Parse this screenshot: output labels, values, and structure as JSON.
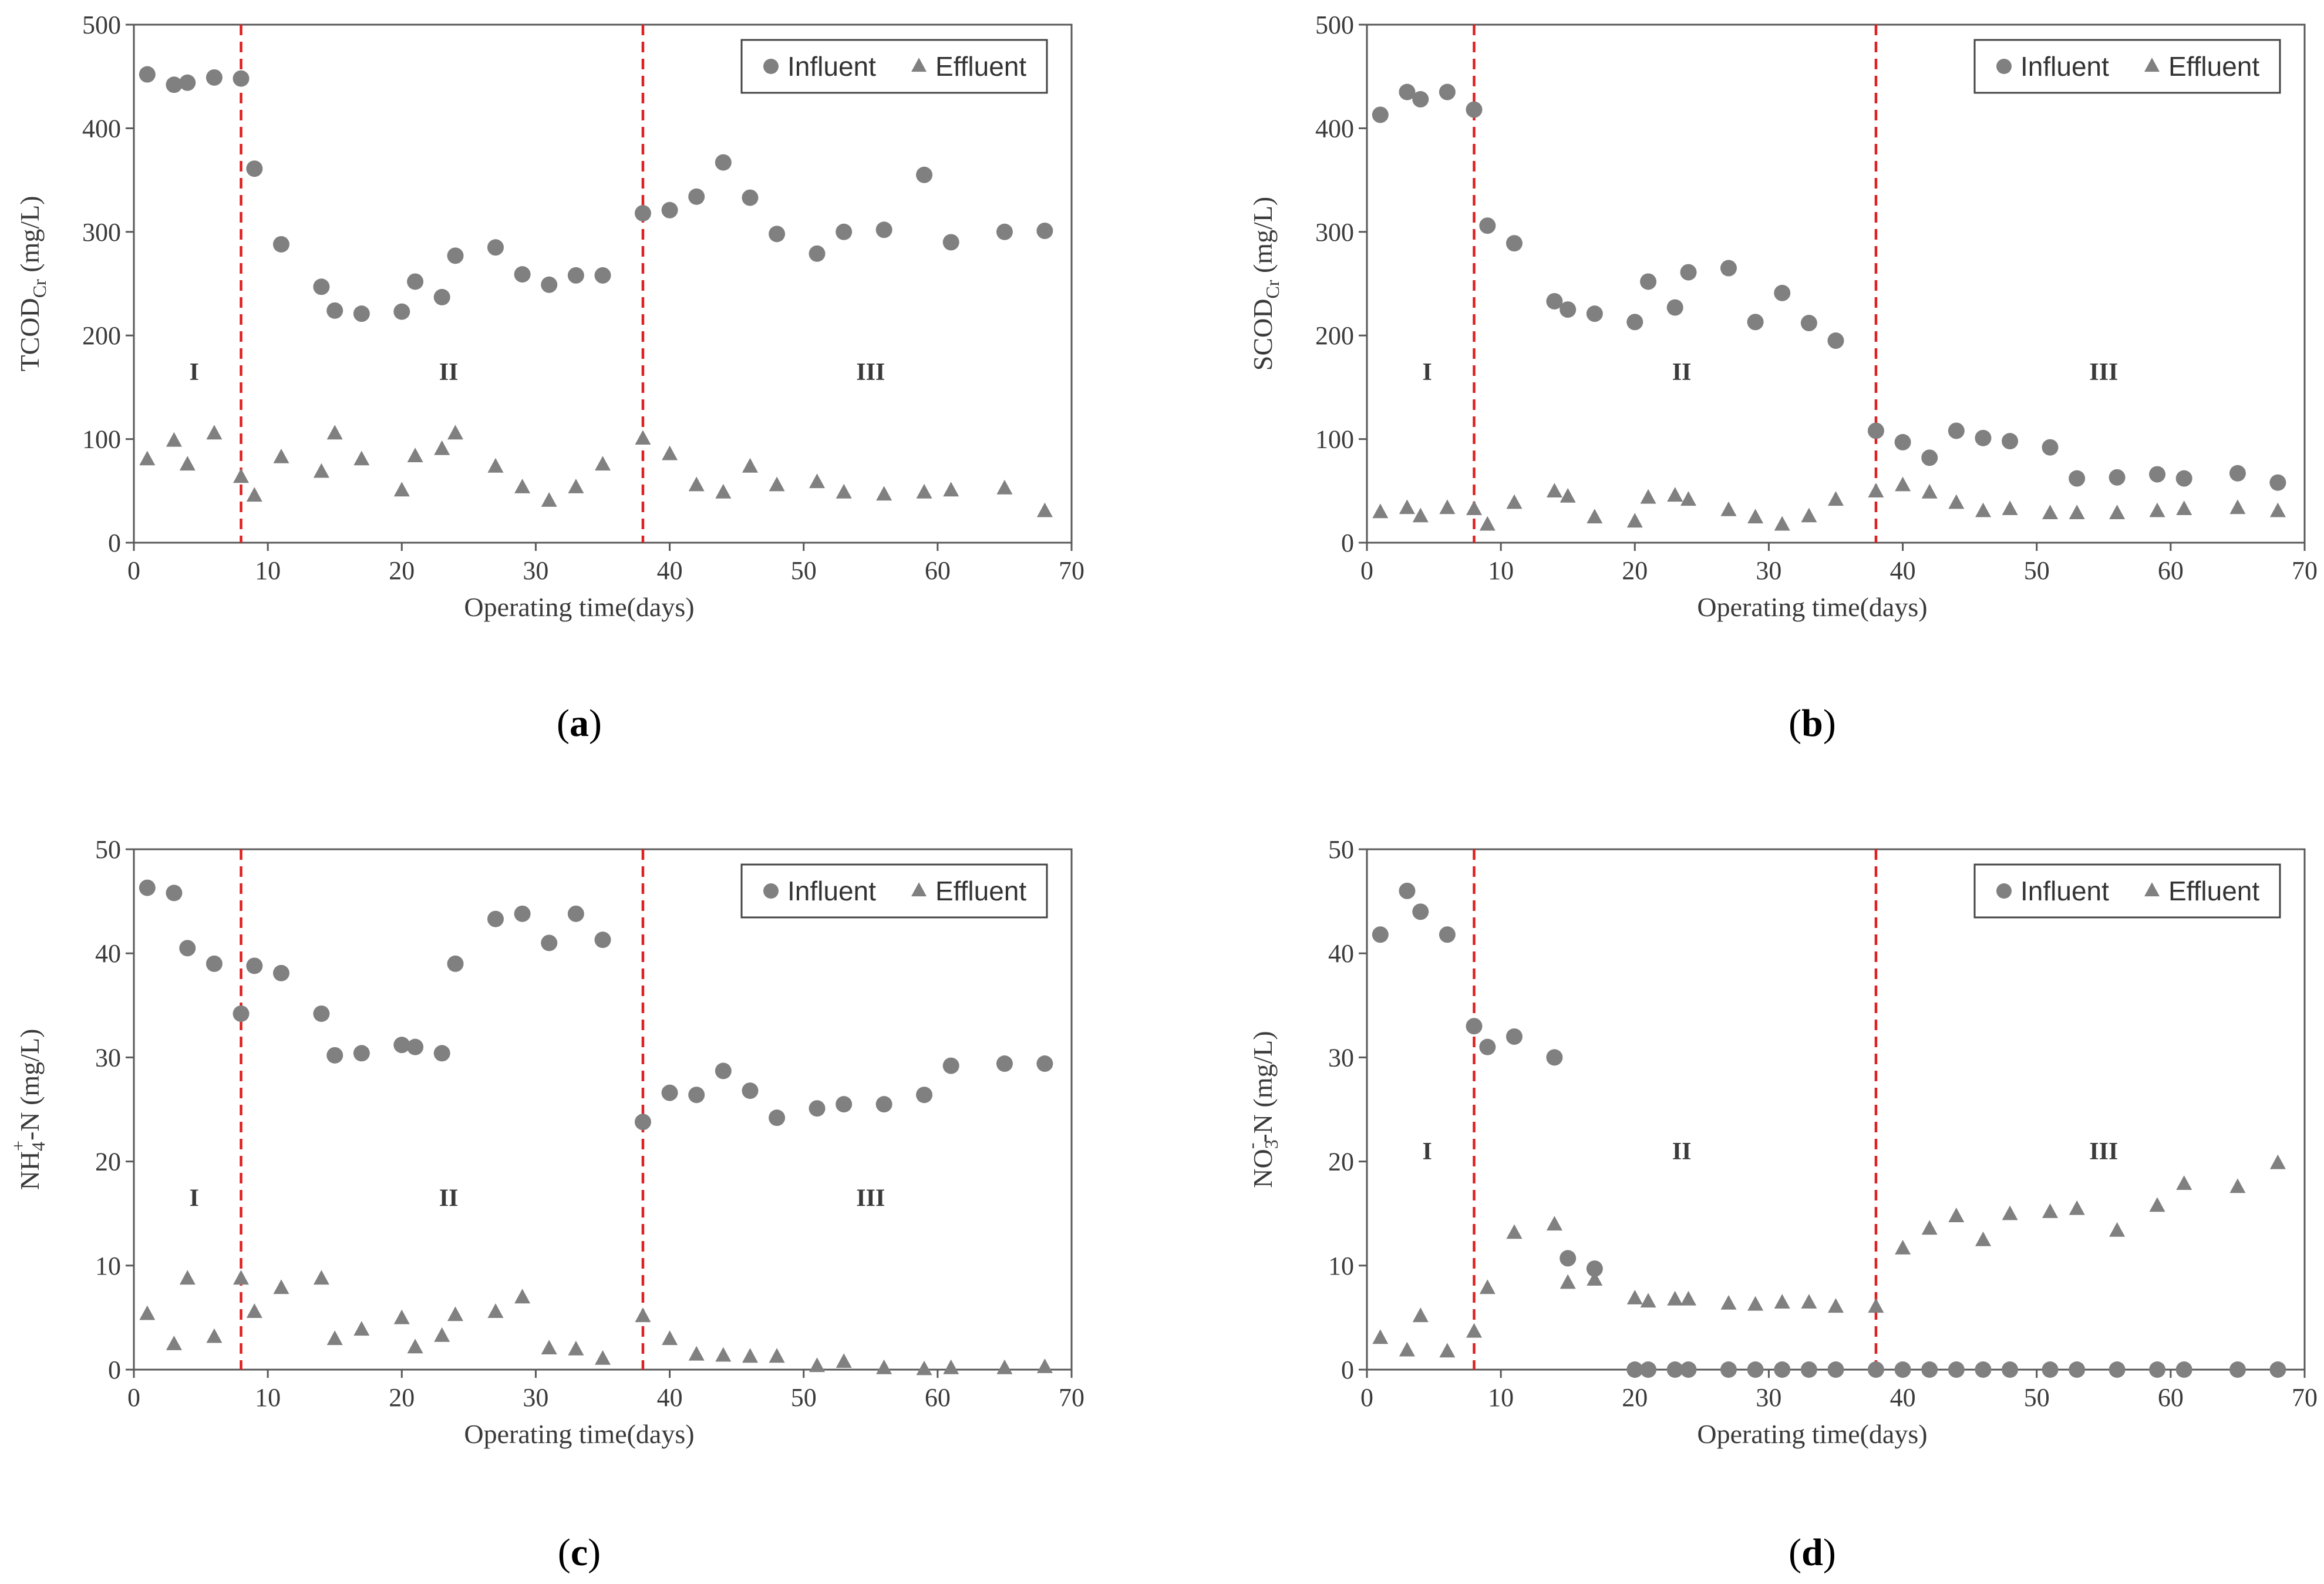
{
  "colors": {
    "marker": "#808080",
    "phase_line": "#e02020",
    "axis": "#595959"
  },
  "chart_data": [
    {
      "panel_label": "a",
      "type": "scatter",
      "ylabel": {
        "main": "TCOD",
        "sub": "Cr",
        "unit": " (mg/L)"
      },
      "xlabel": "Operating time(days)",
      "xlim": [
        0,
        70
      ],
      "ylim": [
        0,
        500
      ],
      "xticks": [
        0,
        10,
        20,
        30,
        40,
        50,
        60,
        70
      ],
      "yticks": [
        0,
        100,
        200,
        300,
        400,
        500
      ],
      "phase_boundaries": [
        8,
        38
      ],
      "phases": [
        {
          "label": "I",
          "x": 4.5,
          "y": 165
        },
        {
          "label": "II",
          "x": 23.5,
          "y": 165
        },
        {
          "label": "III",
          "x": 55,
          "y": 165
        }
      ],
      "legend": {
        "influent": "Influent",
        "effluent": "Effluent",
        "position": "top-right"
      },
      "series": [
        {
          "name": "Influent",
          "marker": "circle",
          "x": [
            1,
            3,
            4,
            6,
            8,
            9,
            11,
            14,
            15,
            17,
            20,
            21,
            23,
            24,
            27,
            29,
            31,
            33,
            35,
            38,
            40,
            42,
            44,
            46,
            48,
            51,
            53,
            56,
            59,
            61,
            65,
            68
          ],
          "values": [
            452,
            442,
            444,
            449,
            448,
            361,
            288,
            247,
            224,
            221,
            223,
            252,
            237,
            277,
            285,
            259,
            249,
            258,
            258,
            318,
            321,
            334,
            367,
            333,
            298,
            279,
            300,
            302,
            355,
            290,
            300,
            301
          ]
        },
        {
          "name": "Effluent",
          "marker": "triangle",
          "x": [
            1,
            3,
            4,
            6,
            8,
            9,
            11,
            14,
            15,
            17,
            20,
            21,
            23,
            24,
            27,
            29,
            31,
            33,
            35,
            38,
            40,
            42,
            44,
            46,
            48,
            51,
            53,
            56,
            59,
            61,
            65,
            68
          ],
          "values": [
            80,
            98,
            75,
            105,
            63,
            45,
            82,
            68,
            105,
            80,
            50,
            83,
            90,
            105,
            73,
            53,
            40,
            53,
            75,
            100,
            85,
            55,
            48,
            73,
            55,
            58,
            48,
            46,
            48,
            50,
            52,
            30
          ]
        }
      ]
    },
    {
      "panel_label": "b",
      "type": "scatter",
      "ylabel": {
        "main": "SCOD",
        "sub": "Cr",
        "unit": " (mg/L)"
      },
      "xlabel": "Operating time(days)",
      "xlim": [
        0,
        70
      ],
      "ylim": [
        0,
        500
      ],
      "xticks": [
        0,
        10,
        20,
        30,
        40,
        50,
        60,
        70
      ],
      "yticks": [
        0,
        100,
        200,
        300,
        400,
        500
      ],
      "phase_boundaries": [
        8,
        38
      ],
      "phases": [
        {
          "label": "I",
          "x": 4.5,
          "y": 165
        },
        {
          "label": "II",
          "x": 23.5,
          "y": 165
        },
        {
          "label": "III",
          "x": 55,
          "y": 165
        }
      ],
      "legend": {
        "influent": "Influent",
        "effluent": "Effluent",
        "position": "top-right"
      },
      "series": [
        {
          "name": "Influent",
          "marker": "circle",
          "x": [
            1,
            3,
            4,
            6,
            8,
            9,
            11,
            14,
            15,
            17,
            20,
            21,
            23,
            24,
            27,
            29,
            31,
            33,
            35,
            38,
            40,
            42,
            44,
            46,
            48,
            51,
            53,
            56,
            59,
            61,
            65,
            68
          ],
          "values": [
            413,
            435,
            428,
            435,
            418,
            306,
            289,
            233,
            225,
            221,
            213,
            252,
            227,
            261,
            265,
            213,
            241,
            212,
            195,
            108,
            97,
            82,
            108,
            101,
            98,
            92,
            62,
            63,
            66,
            62,
            67,
            58
          ]
        },
        {
          "name": "Effluent",
          "marker": "triangle",
          "x": [
            1,
            3,
            4,
            6,
            8,
            9,
            11,
            14,
            15,
            17,
            20,
            21,
            23,
            24,
            27,
            29,
            31,
            33,
            35,
            38,
            40,
            42,
            44,
            46,
            48,
            51,
            53,
            56,
            59,
            61,
            65,
            68
          ],
          "values": [
            29,
            33,
            25,
            33,
            32,
            17,
            38,
            49,
            44,
            24,
            20,
            43,
            45,
            41,
            31,
            24,
            17,
            25,
            41,
            49,
            55,
            48,
            38,
            30,
            32,
            28,
            28,
            28,
            30,
            32,
            33,
            30
          ]
        }
      ]
    },
    {
      "panel_label": "c",
      "type": "scatter",
      "ylabel": {
        "main": "NH",
        "sub": "4",
        "sup": "+",
        "unit": "-N (mg/L)"
      },
      "xlabel": "Operating time(days)",
      "xlim": [
        0,
        70
      ],
      "ylim": [
        0,
        50
      ],
      "xticks": [
        0,
        10,
        20,
        30,
        40,
        50,
        60,
        70
      ],
      "yticks": [
        0,
        10,
        20,
        30,
        40,
        50
      ],
      "phase_boundaries": [
        8,
        38
      ],
      "phases": [
        {
          "label": "I",
          "x": 4.5,
          "y": 16.5
        },
        {
          "label": "II",
          "x": 23.5,
          "y": 16.5
        },
        {
          "label": "III",
          "x": 55,
          "y": 16.5
        }
      ],
      "legend": {
        "influent": "Influent",
        "effluent": "Effluent",
        "position": "top-right"
      },
      "series": [
        {
          "name": "Influent",
          "marker": "circle",
          "x": [
            1,
            3,
            4,
            6,
            8,
            9,
            11,
            14,
            15,
            17,
            20,
            21,
            23,
            24,
            27,
            29,
            31,
            33,
            35,
            38,
            40,
            42,
            44,
            46,
            48,
            51,
            53,
            56,
            59,
            61,
            65,
            68
          ],
          "values": [
            46.3,
            45.8,
            40.5,
            39.0,
            34.2,
            38.8,
            38.1,
            34.2,
            30.2,
            30.4,
            31.2,
            31.0,
            30.4,
            39.0,
            43.3,
            43.8,
            41.0,
            43.8,
            41.3,
            23.8,
            26.6,
            26.4,
            28.7,
            26.8,
            24.2,
            25.1,
            25.5,
            25.5,
            26.4,
            29.2,
            29.4,
            29.4
          ]
        },
        {
          "name": "Effluent",
          "marker": "triangle",
          "x": [
            1,
            3,
            4,
            6,
            8,
            9,
            11,
            14,
            15,
            17,
            20,
            21,
            23,
            24,
            27,
            29,
            31,
            33,
            35,
            38,
            40,
            42,
            44,
            46,
            48,
            51,
            53,
            56,
            59,
            61,
            65,
            68
          ],
          "values": [
            5.3,
            2.4,
            8.7,
            3.1,
            8.7,
            5.5,
            7.8,
            8.7,
            2.9,
            3.8,
            4.9,
            2.1,
            3.2,
            5.2,
            5.5,
            6.9,
            2.0,
            1.9,
            1.0,
            5.1,
            2.9,
            1.4,
            1.3,
            1.2,
            1.2,
            0.3,
            0.7,
            0.1,
            0.0,
            0.1,
            0.1,
            0.2
          ]
        }
      ]
    },
    {
      "panel_label": "d",
      "type": "scatter",
      "ylabel": {
        "main": "NO",
        "sub": "3",
        "sup": "-",
        "unit": "-N (mg/L)"
      },
      "xlabel": "Operating time(days)",
      "xlim": [
        0,
        70
      ],
      "ylim": [
        0,
        50
      ],
      "xticks": [
        0,
        10,
        20,
        30,
        40,
        50,
        60,
        70
      ],
      "yticks": [
        0,
        10,
        20,
        30,
        40,
        50
      ],
      "phase_boundaries": [
        8,
        38
      ],
      "phases": [
        {
          "label": "I",
          "x": 4.5,
          "y": 21
        },
        {
          "label": "II",
          "x": 23.5,
          "y": 21
        },
        {
          "label": "III",
          "x": 55,
          "y": 21
        }
      ],
      "legend": {
        "influent": "Influent",
        "effluent": "Effluent",
        "position": "top-right"
      },
      "series": [
        {
          "name": "Influent",
          "marker": "circle",
          "x": [
            1,
            3,
            4,
            6,
            8,
            9,
            11,
            14,
            15,
            17,
            20,
            21,
            23,
            24,
            27,
            29,
            31,
            33,
            35,
            38,
            40,
            42,
            44,
            46,
            48,
            51,
            53,
            56,
            59,
            61,
            65,
            68
          ],
          "values": [
            41.8,
            46.0,
            44.0,
            41.8,
            33.0,
            31.0,
            32.0,
            30.0,
            10.7,
            9.7,
            0,
            0,
            0,
            0,
            0,
            0,
            0,
            0,
            0,
            0,
            0,
            0,
            0,
            0,
            0,
            0,
            0,
            0,
            0,
            0,
            0,
            0
          ]
        },
        {
          "name": "Effluent",
          "marker": "triangle",
          "x": [
            1,
            3,
            4,
            6,
            8,
            9,
            11,
            14,
            15,
            17,
            20,
            21,
            23,
            24,
            27,
            29,
            31,
            33,
            35,
            38,
            40,
            42,
            44,
            46,
            48,
            51,
            53,
            56,
            59,
            61,
            65,
            68
          ],
          "values": [
            3.0,
            1.8,
            5.1,
            1.7,
            3.6,
            7.8,
            13.1,
            13.9,
            8.3,
            8.6,
            6.8,
            6.5,
            6.7,
            6.7,
            6.3,
            6.2,
            6.4,
            6.4,
            6.0,
            6.0,
            11.6,
            13.5,
            14.7,
            12.4,
            14.9,
            15.1,
            15.4,
            13.3,
            15.7,
            17.8,
            17.5,
            19.8
          ]
        }
      ]
    }
  ]
}
